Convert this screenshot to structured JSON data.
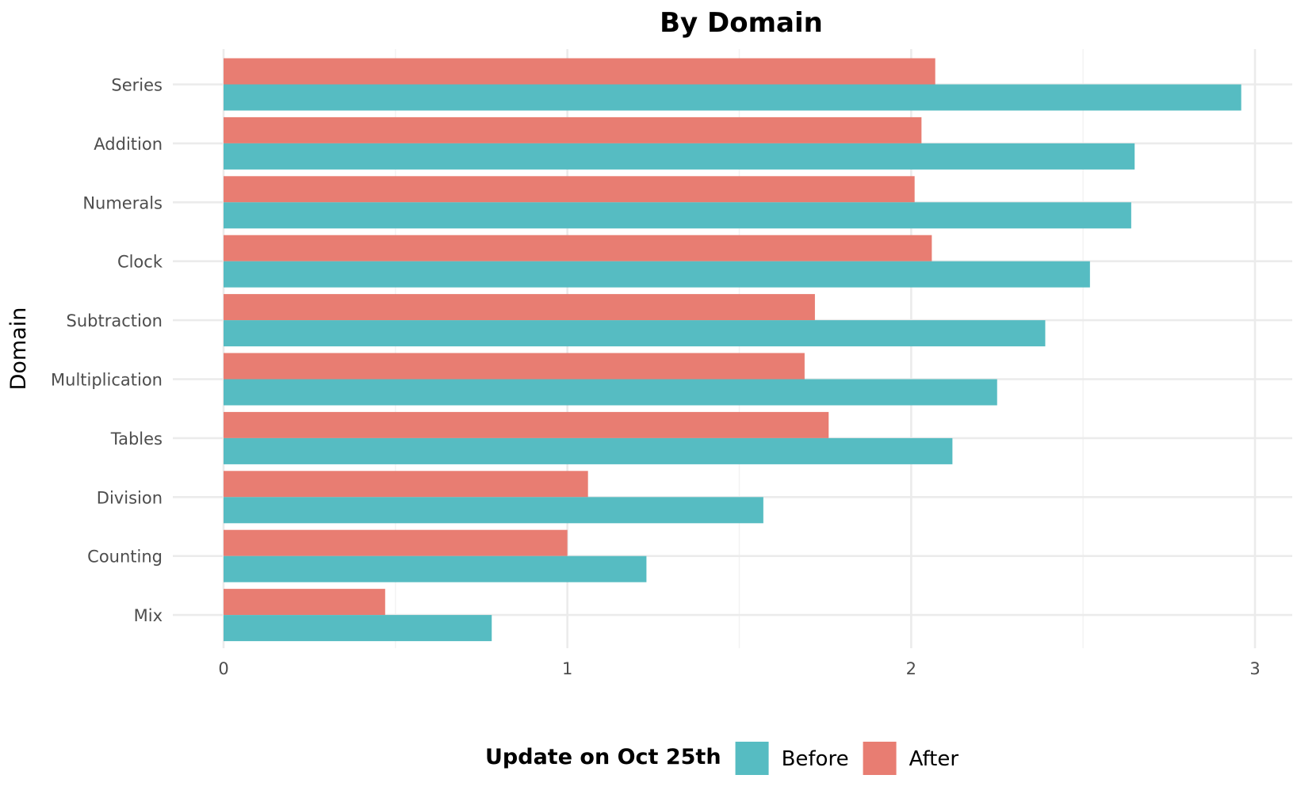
{
  "chart_data": {
    "type": "bar",
    "orientation": "horizontal",
    "title": "By Domain",
    "xlabel": "",
    "ylabel": "Domain",
    "categories": [
      "Series",
      "Addition",
      "Numerals",
      "Clock",
      "Subtraction",
      "Multiplication",
      "Tables",
      "Division",
      "Counting",
      "Mix"
    ],
    "series": [
      {
        "name": "After",
        "color": "#E87D72",
        "values": [
          2.07,
          2.03,
          2.01,
          2.06,
          1.72,
          1.69,
          1.76,
          1.06,
          1.0,
          0.47
        ]
      },
      {
        "name": "Before",
        "color": "#56BCC2",
        "values": [
          2.96,
          2.65,
          2.64,
          2.52,
          2.39,
          2.25,
          2.12,
          1.57,
          1.23,
          0.78
        ]
      }
    ],
    "xlim": [
      0,
      3
    ],
    "xticks": [
      "0",
      "1",
      "2",
      "3"
    ],
    "grid": true,
    "legend": {
      "title": "Update on Oct 25th",
      "position": "bottom",
      "entries": [
        {
          "label": "Before",
          "color": "#56BCC2"
        },
        {
          "label": "After",
          "color": "#E87D72"
        }
      ]
    }
  }
}
